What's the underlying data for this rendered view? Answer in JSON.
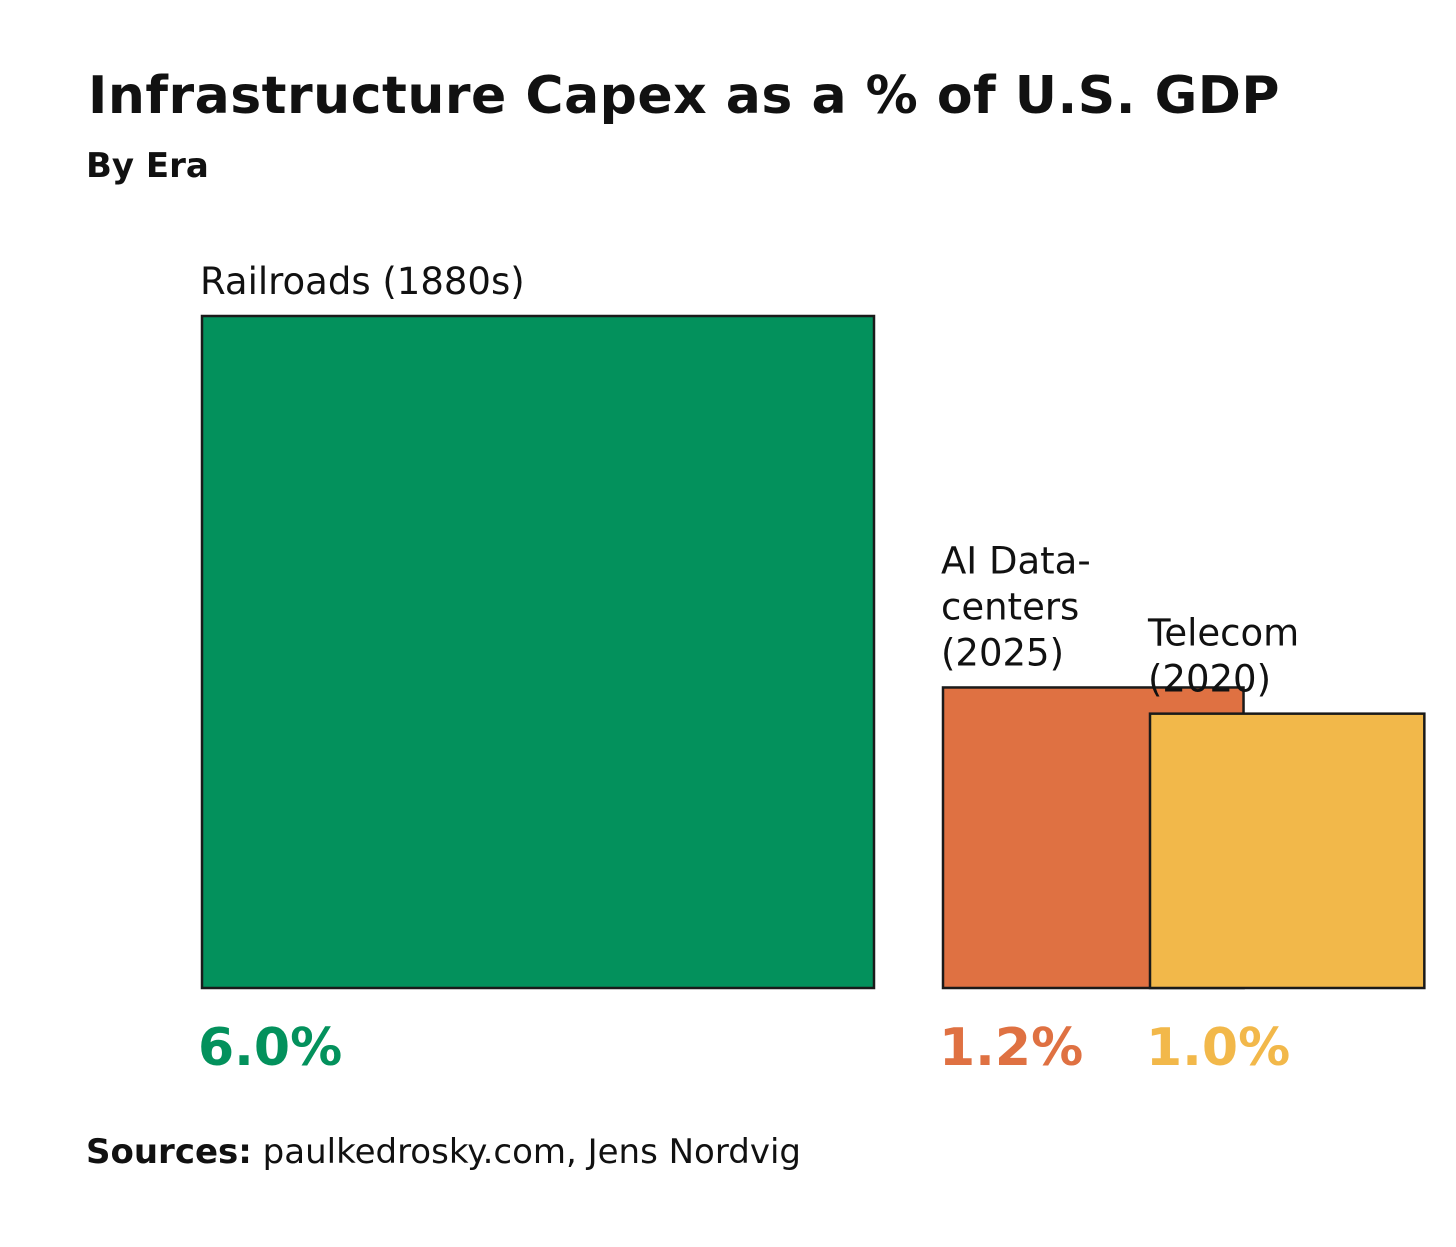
{
  "chart_data": {
    "type": "bar",
    "encoding": "square-area",
    "title": "Infrastructure Capex as a % of U.S. GDP",
    "subtitle": "By Era",
    "unit": "% of U.S. GDP",
    "categories": [
      "Railroads (1880s)",
      "AI Data-centers (2025)",
      "Telecom (2020)"
    ],
    "label_lines": [
      [
        "Railroads (1880s)"
      ],
      [
        "AI Data-",
        "centers",
        "(2025)"
      ],
      [
        "Telecom",
        "(2020)"
      ]
    ],
    "values": [
      6.0,
      1.2,
      1.0
    ],
    "value_labels": [
      "6.0%",
      "1.2%",
      "1.0%"
    ],
    "colors": [
      "#03915c",
      "#df7142",
      "#f2b84a"
    ],
    "xlabel": "",
    "ylabel": "",
    "grid": false,
    "legend": "none"
  },
  "sources": {
    "prefix": "Sources:",
    "text": " paulkedrosky.com, Jens Nordvig"
  }
}
